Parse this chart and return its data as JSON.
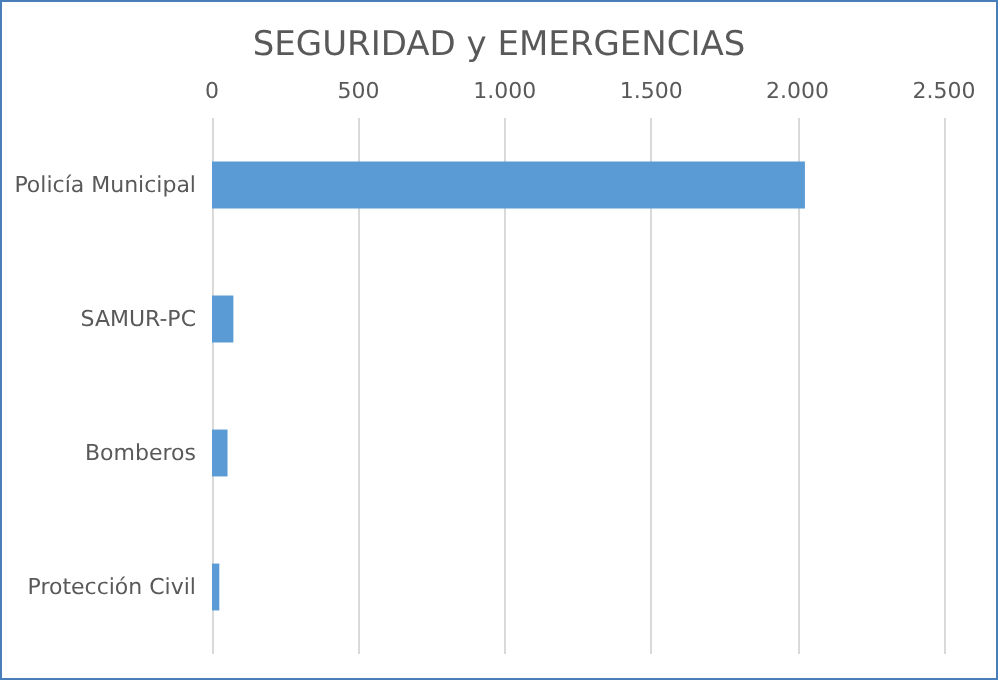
{
  "chart_data": {
    "type": "bar",
    "orientation": "horizontal",
    "title": "SEGURIDAD y EMERGENCIAS",
    "categories": [
      "Policía Municipal",
      "SAMUR-PC",
      "Bomberos",
      "Protección Civil"
    ],
    "values": [
      2025,
      73,
      53,
      25
    ],
    "color": "#5b9bd5",
    "xlim": [
      0,
      2500
    ],
    "xticks": [
      0,
      500,
      {
        "value": 1000,
        "label": "1.000"
      },
      {
        "value": 1500,
        "label": "1.500"
      },
      {
        "value": 2000,
        "label": "2.000"
      },
      {
        "value": 2500,
        "label": "2.500"
      }
    ],
    "grid": "x"
  }
}
